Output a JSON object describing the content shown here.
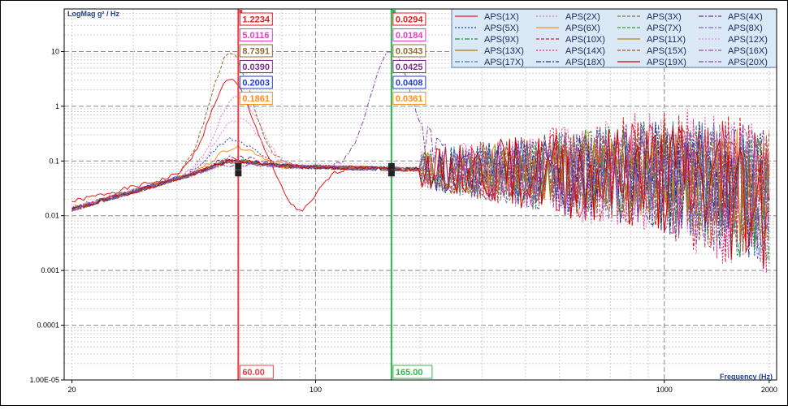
{
  "chart_data": {
    "type": "line",
    "ylabel": "LogMag g² / Hz",
    "xlabel": "Frequency (Hz)",
    "x_scale": "log",
    "y_scale": "log",
    "xlim": [
      19,
      2100
    ],
    "ylim": [
      1e-05,
      60
    ],
    "grid": true,
    "legend_position": "top-right",
    "x_ticks": [
      {
        "value": 20,
        "label": "20"
      },
      {
        "value": 100,
        "label": "100"
      },
      {
        "value": 1000,
        "label": "1000"
      },
      {
        "value": 2000,
        "label": "2000"
      }
    ],
    "y_ticks": [
      {
        "value": 10,
        "label": "10"
      },
      {
        "value": 1,
        "label": "1"
      },
      {
        "value": 0.1,
        "label": "0.1"
      },
      {
        "value": 0.01,
        "label": "0.01"
      },
      {
        "value": 0.001,
        "label": "0.001"
      },
      {
        "value": 0.0001,
        "label": "0.0001"
      },
      {
        "value": 1e-05,
        "label": "1.00E-05"
      }
    ],
    "series": [
      {
        "name": "APS(1X)",
        "color": "#e41a1c",
        "dash": "",
        "y20": 0.018,
        "peak_f": 57,
        "peak_v": 3.0,
        "hf": 1.0,
        "notch": 0.006,
        "seed": 1
      },
      {
        "name": "APS(2X)",
        "color": "#e377c2",
        "dash": "2,2",
        "y20": 0.014,
        "peak_f": 60,
        "peak_v": 1.5,
        "hf": 1.2,
        "notch": 0,
        "seed": 2
      },
      {
        "name": "APS(3X)",
        "color": "#8c6d31",
        "dash": "4,2",
        "y20": 0.014,
        "peak_f": 57,
        "peak_v": 9.0,
        "hf": 0.8,
        "notch": 0,
        "seed": 3
      },
      {
        "name": "APS(4X)",
        "color": "#7b2d8e",
        "dash": "6,2,2,2",
        "y20": 0.013,
        "peak_f": 60,
        "peak_v": 0.12,
        "hf": 1.0,
        "notch": 0,
        "seed": 4
      },
      {
        "name": "APS(5X)",
        "color": "#1f3fcf",
        "dash": "2,2",
        "y20": 0.013,
        "peak_f": 58,
        "peak_v": 0.25,
        "hf": 1.0,
        "notch": 0,
        "seed": 5
      },
      {
        "name": "APS(6X)",
        "color": "#ff8c1a",
        "dash": "",
        "y20": 0.013,
        "peak_f": 60,
        "peak_v": 0.18,
        "hf": 0.9,
        "notch": 0,
        "seed": 6
      },
      {
        "name": "APS(7X)",
        "color": "#2ca02c",
        "dash": "4,2",
        "y20": 0.013,
        "peak_f": 60,
        "peak_v": 0.1,
        "hf": 1.0,
        "notch": 0,
        "seed": 7
      },
      {
        "name": "APS(8X)",
        "color": "#9467bd",
        "dash": "6,2,2,2",
        "y20": 0.013,
        "peak_f": 60,
        "peak_v": 0.1,
        "hf": 1.0,
        "notch": 0,
        "seed": 8
      },
      {
        "name": "APS(9X)",
        "color": "#1a9641",
        "dash": "6,2,2,2",
        "y20": 0.013,
        "peak_f": 60,
        "peak_v": 0.1,
        "hf": 1.0,
        "notch": 0,
        "seed": 9
      },
      {
        "name": "APS(10X)",
        "color": "#d62728",
        "dash": "4,2",
        "y20": 0.013,
        "peak_f": 60,
        "peak_v": 0.1,
        "hf": 1.2,
        "notch": 0,
        "seed": 10
      },
      {
        "name": "APS(11X)",
        "color": "#b8860b",
        "dash": "",
        "y20": 0.013,
        "peak_f": 60,
        "peak_v": 0.1,
        "hf": 0.6,
        "notch": 0,
        "seed": 11
      },
      {
        "name": "APS(12X)",
        "color": "#ee82ee",
        "dash": "2,2",
        "y20": 0.014,
        "peak_f": 60,
        "peak_v": 0.6,
        "hf": 1.0,
        "notch": 0,
        "seed": 12
      },
      {
        "name": "APS(13X)",
        "color": "#a6761d",
        "dash": "",
        "y20": 0.013,
        "peak_f": 60,
        "peak_v": 0.1,
        "hf": 0.5,
        "notch": 0,
        "seed": 13
      },
      {
        "name": "APS(14X)",
        "color": "#e7298a",
        "dash": "2,2",
        "y20": 0.013,
        "peak_f": 60,
        "peak_v": 0.1,
        "hf": 1.3,
        "notch": 0,
        "seed": 14
      },
      {
        "name": "APS(15X)",
        "color": "#a0522d",
        "dash": "4,2",
        "y20": 0.013,
        "peak_f": 60,
        "peak_v": 0.1,
        "hf": 1.0,
        "notch": 0,
        "seed": 15
      },
      {
        "name": "APS(16X)",
        "color": "#984ea3",
        "dash": "6,2,2,2",
        "y20": 0.013,
        "peak_f": 60,
        "peak_v": 0.1,
        "hf": 1.0,
        "notch": 0,
        "seed": 16
      },
      {
        "name": "APS(17X)",
        "color": "#377eb8",
        "dash": "6,2,2,2",
        "y20": 0.013,
        "peak_f": 60,
        "peak_v": 0.1,
        "hf": 1.0,
        "notch": 0,
        "seed": 17
      },
      {
        "name": "APS(18X)",
        "color": "#253494",
        "dash": "6,2,2,2",
        "y20": 0.013,
        "peak_f": 60,
        "peak_v": 0.1,
        "hf": 1.0,
        "notch": 0,
        "seed": 18
      },
      {
        "name": "APS(19X)",
        "color": "#cc0000",
        "dash": "",
        "y20": 0.013,
        "peak_f": 60,
        "peak_v": 0.1,
        "hf": 1.1,
        "notch": 0,
        "seed": 19
      },
      {
        "name": "APS(20X)",
        "color": "#8e44ad",
        "dash": "6,2,2,2",
        "y20": 0.013,
        "peak_f": 165,
        "peak_v": 12.0,
        "hf": 1.0,
        "notch": 0,
        "seed": 20
      }
    ],
    "cursors": [
      {
        "frequency": 60,
        "label": "60.00",
        "color": "#e8404a",
        "readouts": [
          {
            "text": "1.2234",
            "color": "#e41a1c"
          },
          {
            "text": "5.0116",
            "color": "#e040c0"
          },
          {
            "text": "8.7391",
            "color": "#8c6d31"
          },
          {
            "text": "0.0390",
            "color": "#7b2d8e"
          },
          {
            "text": "0.2003",
            "color": "#1f3fcf"
          },
          {
            "text": "0.1861",
            "color": "#ff8c1a"
          }
        ]
      },
      {
        "frequency": 165,
        "label": "165.00",
        "color": "#2fb84a",
        "readouts": [
          {
            "text": "0.0294",
            "color": "#e41a1c"
          },
          {
            "text": "0.0184",
            "color": "#e040c0"
          },
          {
            "text": "0.0343",
            "color": "#8c6d31"
          },
          {
            "text": "0.0425",
            "color": "#7b2d8e"
          },
          {
            "text": "0.0408",
            "color": "#1f3fcf"
          },
          {
            "text": "0.0361",
            "color": "#ff8c1a"
          }
        ]
      }
    ]
  }
}
